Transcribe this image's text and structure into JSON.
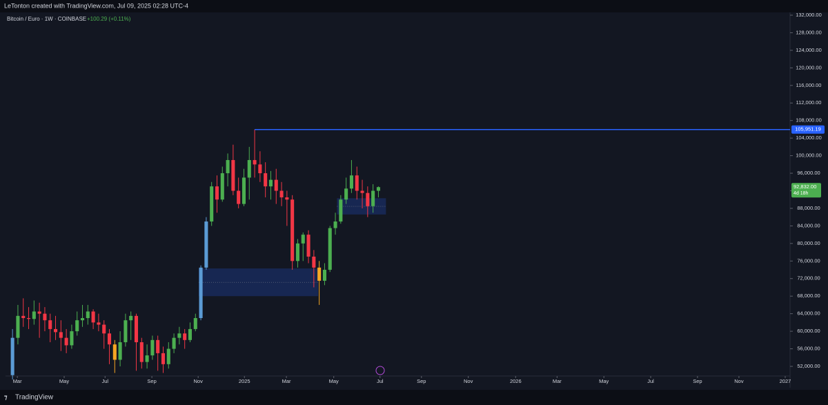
{
  "header": {
    "credit": "LeTonton created with TradingView.com, Jul 09, 2025 02:28 UTC-4"
  },
  "chart_data": {
    "type": "candlestick",
    "title": "Bitcoin / Euro · 1W · COINBASE",
    "change": "+100.29 (+0.11%)",
    "open": [
      50000,
      58500,
      63500,
      63000,
      62800,
      64500,
      64000,
      62500,
      60500,
      59800,
      58500,
      56800,
      60000,
      62500,
      63000,
      64500,
      62000,
      61500,
      59500,
      57000,
      53500,
      57500,
      62500,
      63500,
      57500,
      53000,
      54500,
      58000,
      55000,
      52500,
      56000,
      58500,
      59500,
      58000,
      60500,
      63000,
      74500,
      85000,
      93000,
      90000,
      96000,
      99000,
      92000,
      89000,
      95000,
      99000,
      98000,
      96000,
      93000,
      94500,
      92000,
      90500,
      90000,
      76000,
      80000,
      82000,
      77000,
      74500,
      71500,
      74000,
      83500,
      85000,
      90000,
      92500,
      95500,
      92000,
      91500,
      88500,
      92000
    ],
    "high": [
      60500,
      66000,
      67500,
      65500,
      67000,
      66500,
      65500,
      64000,
      63500,
      62500,
      60500,
      61500,
      64500,
      66000,
      66000,
      65000,
      64000,
      62500,
      60500,
      58000,
      60000,
      64000,
      64500,
      64000,
      58500,
      57000,
      59000,
      59000,
      56500,
      57500,
      59500,
      61000,
      60500,
      62000,
      64000,
      75000,
      86000,
      94000,
      95500,
      97500,
      100500,
      102500,
      95000,
      97000,
      102000,
      105951.19,
      101000,
      98500,
      96500,
      97000,
      94000,
      92000,
      91000,
      81000,
      82500,
      83000,
      78500,
      76000,
      75500,
      84000,
      87000,
      91000,
      95000,
      99000,
      97500,
      94500,
      93000,
      93500,
      93000
    ],
    "low": [
      49000,
      57000,
      61000,
      60500,
      61500,
      58500,
      60000,
      57500,
      58000,
      55500,
      55000,
      56000,
      59000,
      61000,
      61500,
      60500,
      60000,
      56000,
      52500,
      50500,
      52000,
      56500,
      58000,
      51000,
      51500,
      51500,
      53500,
      51000,
      50500,
      51500,
      55000,
      57000,
      56000,
      57500,
      60000,
      62500,
      74000,
      84000,
      87000,
      89500,
      93000,
      91000,
      88000,
      88500,
      90000,
      95000,
      94000,
      90500,
      90000,
      89000,
      88500,
      84000,
      74000,
      74500,
      76000,
      75500,
      70000,
      66000,
      70500,
      73500,
      82000,
      84500,
      89000,
      91500,
      90000,
      88000,
      86000,
      87000,
      90500
    ],
    "close": [
      58500,
      63500,
      63000,
      62800,
      64500,
      64000,
      62500,
      60500,
      59800,
      58500,
      56800,
      60000,
      62500,
      63000,
      64500,
      62000,
      61500,
      59500,
      57000,
      53500,
      57500,
      62500,
      63500,
      57500,
      53000,
      54500,
      58000,
      55000,
      52500,
      56000,
      58500,
      59500,
      58000,
      60500,
      63000,
      74500,
      85000,
      93000,
      90000,
      96000,
      99000,
      92000,
      89000,
      95000,
      99000,
      98000,
      96000,
      93000,
      94500,
      92000,
      90500,
      90000,
      76000,
      80000,
      82000,
      77000,
      74500,
      71500,
      74000,
      83500,
      85000,
      90000,
      92500,
      95500,
      92000,
      91500,
      88500,
      92000,
      92832
    ],
    "up_color": "#4caf50",
    "down_color": "#f23645",
    "blue_color": "#5b9bd5",
    "orange_color": "#f5a623",
    "blue_candles": [
      0,
      35,
      36
    ],
    "orange_candles": [
      19,
      57
    ],
    "xlim": [
      -1.3,
      144.5
    ],
    "xticks": [
      {
        "value": 0.9,
        "label": "Mar"
      },
      {
        "value": 9.6,
        "label": "May"
      },
      {
        "value": 17.2,
        "label": "Jul"
      },
      {
        "value": 25.9,
        "label": "Sep"
      },
      {
        "value": 34.5,
        "label": "Nov"
      },
      {
        "value": 43.1,
        "label": "2025"
      },
      {
        "value": 50.9,
        "label": "Mar"
      },
      {
        "value": 59.7,
        "label": "May"
      },
      {
        "value": 68.3,
        "label": "Jul"
      },
      {
        "value": 76,
        "label": "Sep"
      },
      {
        "value": 84.7,
        "label": "Nov"
      },
      {
        "value": 93.5,
        "label": "2026"
      },
      {
        "value": 101.2,
        "label": "Mar"
      },
      {
        "value": 109.9,
        "label": "May"
      },
      {
        "value": 118.6,
        "label": "Jul"
      },
      {
        "value": 127.3,
        "label": "Sep"
      },
      {
        "value": 135,
        "label": "Nov"
      },
      {
        "value": 143.6,
        "label": "2027"
      }
    ],
    "ylim": [
      49800,
      132630
    ],
    "yticks": [
      {
        "value": 52000,
        "label": "52,000.00"
      },
      {
        "value": 56000,
        "label": "56,000.00"
      },
      {
        "value": 60000,
        "label": "60,000.00"
      },
      {
        "value": 64000,
        "label": "64,000.00"
      },
      {
        "value": 68000,
        "label": "68,000.00"
      },
      {
        "value": 72000,
        "label": "72,000.00"
      },
      {
        "value": 76000,
        "label": "76,000.00"
      },
      {
        "value": 80000,
        "label": "80,000.00"
      },
      {
        "value": 84000,
        "label": "84,000.00"
      },
      {
        "value": 88000,
        "label": "88,000.00"
      },
      {
        "value": 92000,
        "label": "92,000.00"
      },
      {
        "value": 96000,
        "label": "96,000.00"
      },
      {
        "value": 100000,
        "label": "100,000.00"
      },
      {
        "value": 104000,
        "label": "104,000.00"
      },
      {
        "value": 108000,
        "label": "108,000.00"
      },
      {
        "value": 112000,
        "label": "112,000.00"
      },
      {
        "value": 116000,
        "label": "116,000.00"
      },
      {
        "value": 120000,
        "label": "120,000.00"
      },
      {
        "value": 124000,
        "label": "124,000.00"
      },
      {
        "value": 128000,
        "label": "128,000.00"
      },
      {
        "value": 132000,
        "label": "132,000.00"
      }
    ],
    "hline": {
      "value": 105951.19,
      "label": "105,951.19",
      "start": 45,
      "color": "#2962ff"
    },
    "last_price": {
      "value": 92832,
      "label": "92,832.00",
      "countdown": "4d 18h",
      "color": "#4caf50"
    },
    "zones": [
      {
        "x0": 34.6,
        "x1": 56.8,
        "y0": 68000,
        "y1": 74300
      },
      {
        "x0": 60.3,
        "x1": 69.4,
        "y0": 86600,
        "y1": 90300
      }
    ]
  },
  "footer": {
    "brand": "TradingView"
  }
}
